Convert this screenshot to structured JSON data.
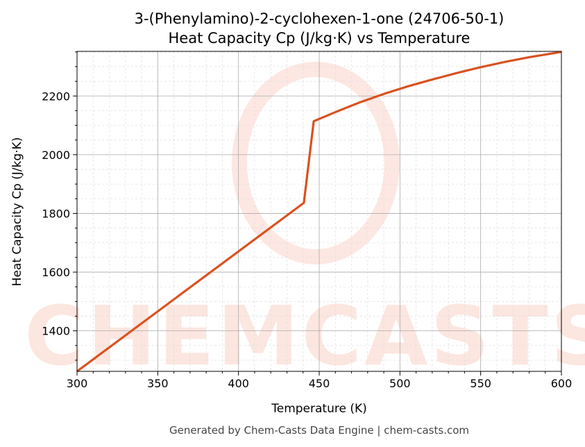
{
  "chart_data": {
    "type": "line",
    "title": "3-(Phenylamino)-2-cyclohexen-1-one (24706-50-1)",
    "subtitle": "Heat Capacity Cp (J/kg·K) vs Temperature",
    "xlabel": "Temperature (K)",
    "ylabel": "Heat Capacity Cp (J/kg·K)",
    "xlim": [
      300,
      600
    ],
    "ylim": [
      1262,
      2352
    ],
    "xticks": [
      300,
      350,
      400,
      450,
      500,
      550,
      600
    ],
    "yticks": [
      1400,
      1600,
      1800,
      2000,
      2200
    ],
    "grid": true,
    "color": "#d9521f",
    "series": [
      {
        "name": "Cp",
        "x": [
          300,
          440.5,
          446.6,
          460,
          475,
          490,
          505,
          520,
          535,
          550,
          565,
          580,
          600
        ],
        "y": [
          1262,
          1836,
          2114,
          2145,
          2178,
          2207,
          2233,
          2256,
          2278,
          2298,
          2316,
          2332,
          2350
        ]
      }
    ],
    "watermark": "CHEMCASTS",
    "footer": "Generated by Chem-Casts Data Engine | chem-casts.com"
  }
}
